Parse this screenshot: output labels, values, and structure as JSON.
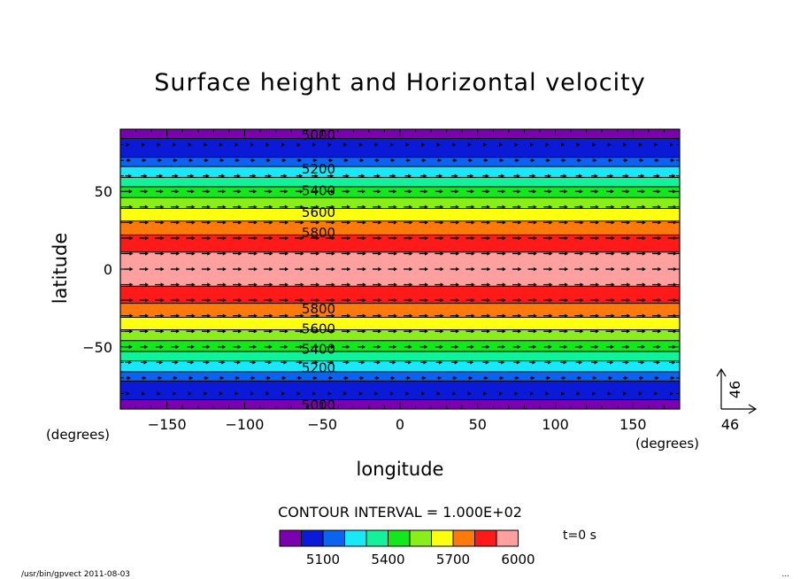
{
  "chart_data": {
    "type": "heatmap",
    "title": "Surface height and Horizontal velocity",
    "xlabel": "longitude",
    "ylabel": "latitude",
    "x_units": "(degrees)",
    "y_units": "(degrees)",
    "xlim": [
      -180,
      180
    ],
    "ylim": [
      -90,
      90
    ],
    "x_ticks": [
      -150,
      -100,
      -50,
      0,
      50,
      100,
      150
    ],
    "y_ticks": [
      50,
      0,
      -50
    ],
    "contour_interval_label": "CONTOUR INTERVAL = 1.000E+02",
    "time_label": "t=0 s",
    "vector_ref": {
      "u": 46,
      "v": 46,
      "u_label": "46",
      "v_label": "46"
    },
    "contour_labels": [
      {
        "lat": 87,
        "text": "5000"
      },
      {
        "lat": 65,
        "text": "5200"
      },
      {
        "lat": 51,
        "text": "5400"
      },
      {
        "lat": 37,
        "text": "5600"
      },
      {
        "lat": 24,
        "text": "5800"
      },
      {
        "lat": -25,
        "text": "5800"
      },
      {
        "lat": -38,
        "text": "5600"
      },
      {
        "lat": -51,
        "text": "5400"
      },
      {
        "lat": -63,
        "text": "5200"
      },
      {
        "lat": -87,
        "text": "5000"
      }
    ],
    "bands": [
      {
        "lat_min": 84,
        "lat_max": 90,
        "level": "<5000",
        "color": "#7a00b0"
      },
      {
        "lat_min": 72,
        "lat_max": 84,
        "level": "5000-5100",
        "color": "#0a1ad6"
      },
      {
        "lat_min": 66,
        "lat_max": 72,
        "level": "5100-5200",
        "color": "#0b63ef"
      },
      {
        "lat_min": 59,
        "lat_max": 66,
        "level": "5200-5300",
        "color": "#18e8f8"
      },
      {
        "lat_min": 53,
        "lat_max": 59,
        "level": "5300-5400",
        "color": "#12f29a"
      },
      {
        "lat_min": 46,
        "lat_max": 53,
        "level": "5400-5500",
        "color": "#12e81c"
      },
      {
        "lat_min": 39,
        "lat_max": 46,
        "level": "5500-5600",
        "color": "#8aee1a"
      },
      {
        "lat_min": 31,
        "lat_max": 39,
        "level": "5600-5700",
        "color": "#ffff10"
      },
      {
        "lat_min": 22,
        "lat_max": 31,
        "level": "5700-5800",
        "color": "#ff7a0a"
      },
      {
        "lat_min": 11,
        "lat_max": 22,
        "level": "5800-5900",
        "color": "#ff1a1a"
      },
      {
        "lat_min": -11,
        "lat_max": 11,
        "level": ">5900",
        "color": "#ffa0a0"
      },
      {
        "lat_min": -22,
        "lat_max": -11,
        "level": "5800-5900",
        "color": "#ff1a1a"
      },
      {
        "lat_min": -31,
        "lat_max": -22,
        "level": "5700-5800",
        "color": "#ff7a0a"
      },
      {
        "lat_min": -39,
        "lat_max": -31,
        "level": "5600-5700",
        "color": "#ffff10"
      },
      {
        "lat_min": -46,
        "lat_max": -39,
        "level": "5500-5600",
        "color": "#8aee1a"
      },
      {
        "lat_min": -53,
        "lat_max": -46,
        "level": "5400-5500",
        "color": "#12e81c"
      },
      {
        "lat_min": -59,
        "lat_max": -53,
        "level": "5300-5400",
        "color": "#12f29a"
      },
      {
        "lat_min": -66,
        "lat_max": -59,
        "level": "5200-5300",
        "color": "#18e8f8"
      },
      {
        "lat_min": -72,
        "lat_max": -66,
        "level": "5100-5200",
        "color": "#0b63ef"
      },
      {
        "lat_min": -84,
        "lat_max": -72,
        "level": "5000-5100",
        "color": "#0a1ad6"
      },
      {
        "lat_min": -90,
        "lat_max": -84,
        "level": "<5000",
        "color": "#7a00b0"
      }
    ],
    "vector_rows": [
      {
        "lat": 80,
        "u": 4
      },
      {
        "lat": 70,
        "u": 12
      },
      {
        "lat": 60,
        "u": 18
      },
      {
        "lat": 50,
        "u": 22
      },
      {
        "lat": 40,
        "u": 25
      },
      {
        "lat": 30,
        "u": 26
      },
      {
        "lat": 20,
        "u": 26
      },
      {
        "lat": 10,
        "u": 26
      },
      {
        "lat": 0,
        "u": 26
      },
      {
        "lat": -10,
        "u": 26
      },
      {
        "lat": -20,
        "u": 26
      },
      {
        "lat": -30,
        "u": 26
      },
      {
        "lat": -40,
        "u": 25
      },
      {
        "lat": -50,
        "u": 22
      },
      {
        "lat": -60,
        "u": 18
      },
      {
        "lat": -70,
        "u": 12
      },
      {
        "lat": -80,
        "u": 4
      }
    ],
    "vector_lons": [
      -175,
      -165,
      -155,
      -145,
      -135,
      -125,
      -115,
      -105,
      -95,
      -85,
      -75,
      -65,
      -55,
      -45,
      -35,
      -25,
      -15,
      -5,
      5,
      15,
      25,
      35,
      45,
      55,
      65,
      75,
      85,
      95,
      105,
      115,
      125,
      135,
      145,
      155,
      165,
      175
    ],
    "colorbar": {
      "colors": [
        "#7a00b0",
        "#0a1ad6",
        "#0b63ef",
        "#18e8f8",
        "#12f29a",
        "#12e81c",
        "#8aee1a",
        "#ffff10",
        "#ff7a0a",
        "#ff1a1a",
        "#ffa0a0"
      ],
      "labels": [
        {
          "index": 2,
          "text": "5100"
        },
        {
          "index": 5,
          "text": "5400"
        },
        {
          "index": 8,
          "text": "5700"
        },
        {
          "index": 11,
          "text": "6000"
        }
      ]
    }
  },
  "footer": {
    "left": "/usr/bin/gpvect  2011-08-03",
    "right": "..."
  }
}
